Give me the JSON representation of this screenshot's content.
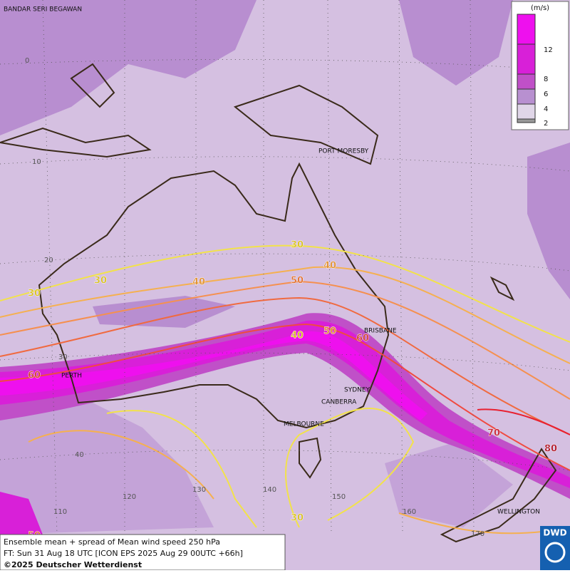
{
  "map": {
    "cities": [
      "BANDAR SERI BEGAWAN",
      "PORT MORESBY",
      "BRISBANE",
      "PERTH",
      "SYDNEY",
      "CANBERRA",
      "MELBOURNE",
      "WELLINGTON"
    ],
    "latitude_labels": [
      "0",
      "10",
      "20",
      "30",
      "40"
    ],
    "longitude_labels": [
      "110",
      "120",
      "130",
      "140",
      "150",
      "160",
      "170"
    ],
    "contour_labels": [
      "30",
      "30",
      "30",
      "30",
      "40",
      "40",
      "40",
      "50",
      "50",
      "50",
      "60",
      "60",
      "70",
      "80"
    ]
  },
  "legend": {
    "unit": "(m/s)",
    "labels": [
      "12",
      "8",
      "6",
      "4",
      "2"
    ]
  },
  "footer": {
    "lines": [
      "Ensemble mean + spread of Mean wind speed 250 hPa",
      "FT: Sun 31 Aug 18 UTC [ICON EPS 2025 Aug 29 00UTC +66h]",
      "©2025 Deutscher Wetterdienst"
    ]
  },
  "logo": "DWD"
}
